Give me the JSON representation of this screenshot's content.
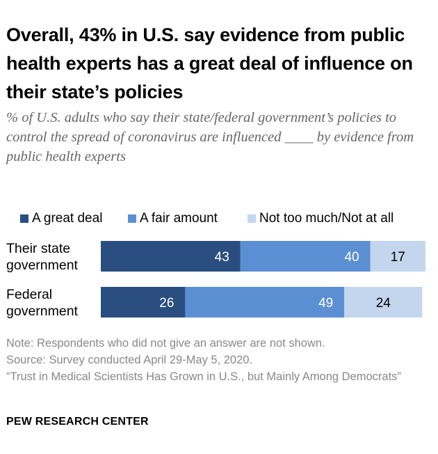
{
  "title": "Overall, 43% in U.S. say evidence from public health experts has a great deal of influence on their state’s policies",
  "subtitle": "% of U.S. adults who say their state/federal government’s policies to control the spread of coronavirus are influenced ____ by evidence from public health experts",
  "colors": {
    "great_deal": "#2a4e7f",
    "fair_amount": "#5b8fd3",
    "not_much": "#c3d6ee"
  },
  "chart_data": {
    "type": "bar",
    "orientation": "horizontal",
    "stacked": true,
    "categories": [
      "Their state government",
      "Federal government"
    ],
    "category_lines": [
      [
        "Their state",
        "government"
      ],
      [
        "Federal",
        "government"
      ]
    ],
    "series": [
      {
        "name": "A great deal",
        "values": [
          43,
          26
        ]
      },
      {
        "name": "A fair amount",
        "values": [
          40,
          49
        ]
      },
      {
        "name": "Not too much/Not at all",
        "values": [
          17,
          24
        ]
      }
    ],
    "xlim": [
      0,
      100
    ],
    "legend_position": "top"
  },
  "notes": [
    "Note: Respondents who did not give an answer are not shown.",
    "Source: Survey conducted April 29-May 5, 2020.",
    "“Trust in Medical Scientists Has Grown in U.S., but Mainly Among Democrats”"
  ],
  "brand": "PEW RESEARCH CENTER"
}
